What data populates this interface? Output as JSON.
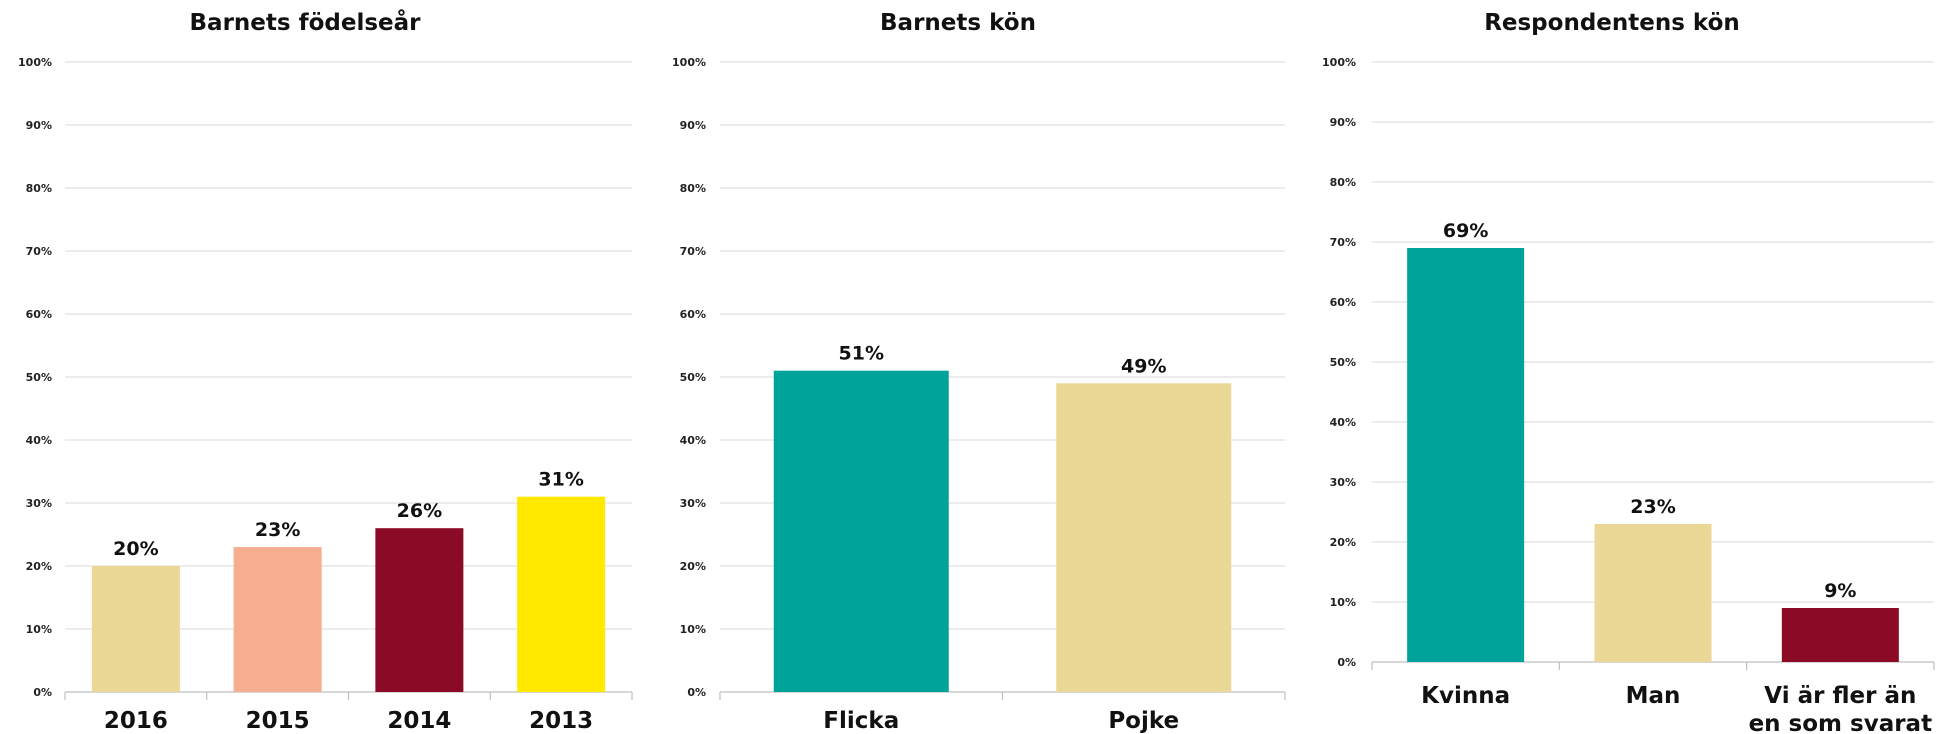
{
  "chart_data": [
    {
      "type": "bar",
      "title": "Barnets födelseår",
      "categories": [
        "2016",
        "2015",
        "2014",
        "2013"
      ],
      "values": [
        20,
        23,
        26,
        31
      ],
      "value_labels": [
        "20%",
        "23%",
        "26%",
        "31%"
      ],
      "colors": [
        "#EBD796",
        "#F5AE90",
        "#8B0A26",
        "#FFE900"
      ],
      "ylim": [
        0,
        100
      ],
      "yticks": [
        "0%",
        "10%",
        "20%",
        "30%",
        "40%",
        "50%",
        "60%",
        "70%",
        "80%",
        "90%",
        "100%"
      ],
      "grid": true
    },
    {
      "type": "bar",
      "title": "Barnets kön",
      "categories": [
        "Flicka",
        "Pojke"
      ],
      "values": [
        51,
        49
      ],
      "value_labels": [
        "51%",
        "49%"
      ],
      "colors": [
        "#00A39A",
        "#EBD796"
      ],
      "ylim": [
        0,
        100
      ],
      "yticks": [
        "0%",
        "10%",
        "20%",
        "30%",
        "40%",
        "50%",
        "60%",
        "70%",
        "80%",
        "90%",
        "100%"
      ],
      "grid": true
    },
    {
      "type": "bar",
      "title": "Respondentens kön",
      "categories": [
        "Kvinna",
        "Man",
        "Vi är fler än en som svarat"
      ],
      "values": [
        69,
        23,
        9
      ],
      "value_labels": [
        "69%",
        "23%",
        "9%"
      ],
      "colors": [
        "#00A39A",
        "#EBD796",
        "#8B0A26"
      ],
      "ylim": [
        0,
        100
      ],
      "yticks": [
        "0%",
        "10%",
        "20%",
        "30%",
        "40%",
        "50%",
        "60%",
        "70%",
        "80%",
        "90%",
        "100%"
      ],
      "grid": true
    }
  ]
}
